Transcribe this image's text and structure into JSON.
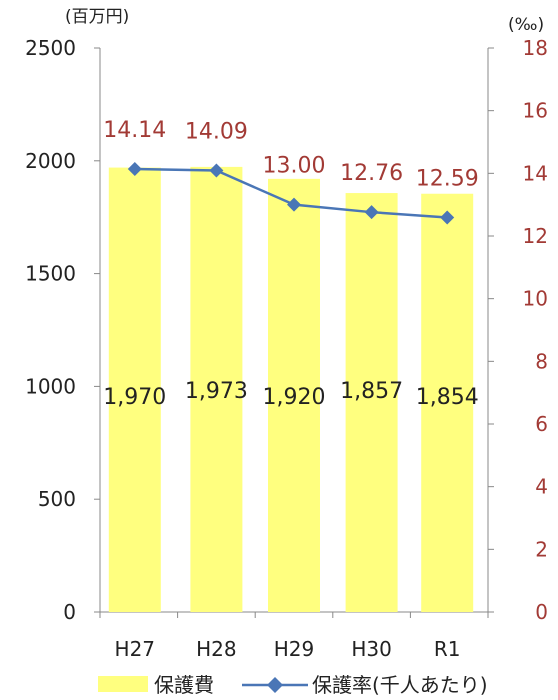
{
  "chart_data": {
    "type": "bar+line",
    "categories": [
      "H27",
      "H28",
      "H29",
      "H30",
      "R1"
    ],
    "bars": {
      "name": "保護費",
      "values": [
        1970,
        1973,
        1920,
        1857,
        1854
      ],
      "labels": [
        "1,970",
        "1,973",
        "1,920",
        "1,857",
        "1,854"
      ],
      "color": "#ffff7f"
    },
    "line": {
      "name": "保護率(千人あたり)",
      "values": [
        14.14,
        14.09,
        13.0,
        12.76,
        12.59
      ],
      "labels": [
        "14.14",
        "14.09",
        "13.00",
        "12.76",
        "12.59"
      ],
      "color": "#4a76b6",
      "label_color": "#a23a35"
    },
    "y_left": {
      "unit": "(百万円)",
      "ticks": [
        "0",
        "500",
        "1000",
        "1500",
        "2000",
        "2500"
      ],
      "range": [
        0,
        2500
      ]
    },
    "y_right": {
      "unit": "(‰)",
      "ticks": [
        "0",
        "2",
        "4",
        "6",
        "8",
        "10",
        "12",
        "14",
        "16",
        "18"
      ],
      "range": [
        0,
        18
      ],
      "color": "#a23a35"
    },
    "legend": {
      "position": "bottom",
      "items": [
        "保護費",
        "保護率(千人あたり)"
      ]
    },
    "grid": false
  }
}
